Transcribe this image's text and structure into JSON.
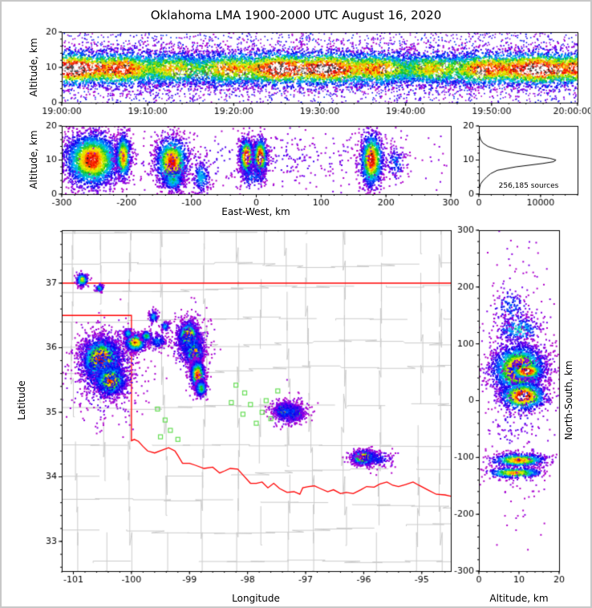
{
  "title": "Oklahoma LMA 1900-2000 UTC August 16, 2020",
  "colors": {
    "background": "#ffffff",
    "frame": "#c8c8c8",
    "axis": "#000000",
    "state_border": "#ff0000",
    "county_lines": "#cbcbcb",
    "station_marker": "#66dd55",
    "histogram_line": "#000000",
    "colormap_stops": [
      {
        "t": 0.0,
        "c": "#c000c0"
      },
      {
        "t": 0.1,
        "c": "#7700ee"
      },
      {
        "t": 0.22,
        "c": "#0000ee"
      },
      {
        "t": 0.34,
        "c": "#0077ff"
      },
      {
        "t": 0.45,
        "c": "#00ccee"
      },
      {
        "t": 0.56,
        "c": "#00bb22"
      },
      {
        "t": 0.68,
        "c": "#bbee00"
      },
      {
        "t": 0.76,
        "c": "#ffee00"
      },
      {
        "t": 0.84,
        "c": "#ff8800"
      },
      {
        "t": 0.92,
        "c": "#ff1100"
      },
      {
        "t": 1.0,
        "c": "#cc0000"
      }
    ]
  },
  "chart_data": {
    "time_height": {
      "type": "scatter",
      "ylabel": "Altitude, km",
      "ylim": [
        0,
        20
      ],
      "yticks": [
        0,
        10,
        20
      ],
      "xlim_seconds": [
        0,
        3600
      ],
      "x_ticks_seconds": [
        0,
        600,
        1200,
        1800,
        2400,
        3000,
        3600
      ],
      "x_tick_labels": [
        "19:00:00",
        "19:10:00",
        "19:20:00",
        "19:30:00",
        "19:40:00",
        "19:50:00",
        "20:00:00"
      ],
      "band_center_km": 9.8,
      "band_sigma_km": 2.7,
      "band_points": 13000,
      "sparse_points": 2600,
      "white_blobs": 45
    },
    "east_west": {
      "type": "scatter",
      "xlabel": "East-West, km",
      "ylabel": "Altitude, km",
      "xlim": [
        -300,
        300
      ],
      "xticks": [
        -300,
        -200,
        -100,
        0,
        100,
        200,
        300
      ],
      "ylim": [
        0,
        20
      ],
      "yticks": [
        0,
        10,
        20
      ],
      "cluster_fields": [
        "x_center_km",
        "alt_center_km",
        "x_sigma",
        "alt_sigma",
        "points",
        "peak"
      ],
      "clusters": [
        [
          -253,
          10,
          22,
          4.2,
          2800,
          0.97
        ],
        [
          -205,
          11,
          6,
          3.5,
          650,
          0.9
        ],
        [
          -130,
          9.5,
          13,
          3.8,
          1400,
          0.95
        ],
        [
          -128,
          4,
          10,
          1.8,
          260,
          0.5
        ],
        [
          -85,
          5,
          7,
          2.5,
          220,
          0.45
        ],
        [
          -15,
          11,
          5.5,
          2.8,
          780,
          1.06
        ],
        [
          6,
          11,
          5.5,
          2.8,
          750,
          1.06
        ],
        [
          -5,
          5.5,
          12,
          2,
          180,
          0.35
        ],
        [
          178,
          10,
          9,
          4.2,
          1250,
          1.0
        ],
        [
          215,
          9,
          8,
          3,
          130,
          0.3
        ],
        [
          0,
          10,
          150,
          4.5,
          500,
          0.12
        ]
      ]
    },
    "histogram": {
      "type": "line",
      "annotation": "256,185 sources",
      "xlim": [
        0,
        16000
      ],
      "xticks": [
        0,
        10000
      ],
      "ylim": [
        0,
        20
      ],
      "yticks": [
        0,
        10,
        20
      ],
      "profile_alt_km_count": [
        [
          0,
          30
        ],
        [
          1,
          60
        ],
        [
          2,
          130
        ],
        [
          3,
          280
        ],
        [
          4,
          700
        ],
        [
          5,
          1250
        ],
        [
          6,
          1900
        ],
        [
          7,
          3000
        ],
        [
          8,
          6000
        ],
        [
          9,
          10400
        ],
        [
          9.5,
          12100
        ],
        [
          10,
          12500
        ],
        [
          10.5,
          11500
        ],
        [
          11,
          9600
        ],
        [
          12,
          6000
        ],
        [
          13,
          3100
        ],
        [
          14,
          1450
        ],
        [
          15,
          640
        ],
        [
          16,
          280
        ],
        [
          17,
          115
        ],
        [
          18,
          50
        ],
        [
          19,
          18
        ],
        [
          20,
          6
        ]
      ]
    },
    "plan_view": {
      "type": "scatter",
      "xlabel": "Longitude",
      "ylabel": "Latitude",
      "xlim": [
        -101.2,
        -94.5
      ],
      "ylim": [
        32.54,
        37.82
      ],
      "xticks": [
        -101,
        -100,
        -99,
        -98,
        -97,
        -96,
        -95
      ],
      "yticks": [
        33,
        34,
        35,
        36,
        37
      ],
      "cluster_fields": [
        "lon",
        "lat",
        "lon_sigma",
        "lat_sigma",
        "points",
        "peak"
      ],
      "clusters": [
        [
          -100.52,
          35.82,
          0.17,
          0.17,
          2600,
          0.96
        ],
        [
          -100.36,
          35.5,
          0.13,
          0.12,
          1500,
          0.92
        ],
        [
          -100.45,
          35.65,
          0.3,
          0.34,
          800,
          0.3
        ],
        [
          -99.93,
          36.08,
          0.09,
          0.07,
          750,
          0.9
        ],
        [
          -99.74,
          36.18,
          0.05,
          0.04,
          180,
          0.6
        ],
        [
          -100.06,
          36.22,
          0.04,
          0.04,
          140,
          0.5
        ],
        [
          -99.55,
          36.1,
          0.08,
          0.06,
          150,
          0.35
        ],
        [
          -99.02,
          36.18,
          0.09,
          0.11,
          1200,
          0.95
        ],
        [
          -98.92,
          35.93,
          0.08,
          0.09,
          950,
          0.9
        ],
        [
          -98.98,
          36.05,
          0.18,
          0.22,
          450,
          0.28
        ],
        [
          -98.86,
          35.58,
          0.06,
          0.11,
          1000,
          0.95
        ],
        [
          -98.8,
          35.37,
          0.05,
          0.07,
          350,
          0.6
        ],
        [
          -97.38,
          35.03,
          0.06,
          0.05,
          850,
          1.07
        ],
        [
          -97.17,
          34.99,
          0.055,
          0.05,
          800,
          1.07
        ],
        [
          -97.3,
          35.0,
          0.17,
          0.1,
          450,
          0.28
        ],
        [
          -96.0,
          34.3,
          0.1,
          0.055,
          850,
          1.0
        ],
        [
          -95.82,
          34.28,
          0.2,
          0.07,
          220,
          0.26
        ],
        [
          -100.85,
          37.05,
          0.05,
          0.05,
          200,
          0.75
        ],
        [
          -100.55,
          36.92,
          0.035,
          0.03,
          90,
          0.5
        ],
        [
          -99.62,
          36.48,
          0.04,
          0.05,
          110,
          0.45
        ],
        [
          -99.42,
          36.33,
          0.04,
          0.04,
          70,
          0.4
        ]
      ],
      "stations": [
        [
          -99.55,
          35.05
        ],
        [
          -99.42,
          34.88
        ],
        [
          -99.33,
          34.72
        ],
        [
          -99.2,
          34.58
        ],
        [
          -99.5,
          34.62
        ],
        [
          -98.2,
          35.42
        ],
        [
          -98.05,
          35.3
        ],
        [
          -97.95,
          35.12
        ],
        [
          -98.08,
          34.97
        ],
        [
          -97.75,
          35.0
        ],
        [
          -97.6,
          34.9
        ],
        [
          -97.85,
          34.83
        ],
        [
          -98.28,
          35.15
        ],
        [
          -97.68,
          35.18
        ],
        [
          -97.48,
          35.33
        ]
      ],
      "state_border": {
        "kansas_line_lat": 37,
        "west_and_south": [
          [
            -101.2,
            36.5
          ],
          [
            -100.0,
            36.5
          ],
          [
            -100.0,
            34.56
          ],
          [
            -99.95,
            34.58
          ],
          [
            -99.88,
            34.55
          ],
          [
            -99.8,
            34.47
          ],
          [
            -99.72,
            34.4
          ],
          [
            -99.6,
            34.37
          ],
          [
            -99.48,
            34.41
          ],
          [
            -99.36,
            34.45
          ],
          [
            -99.25,
            34.4
          ],
          [
            -99.2,
            34.33
          ],
          [
            -99.12,
            34.21
          ],
          [
            -99.0,
            34.21
          ],
          [
            -98.9,
            34.18
          ],
          [
            -98.75,
            34.13
          ],
          [
            -98.6,
            34.15
          ],
          [
            -98.48,
            34.06
          ],
          [
            -98.4,
            34.09
          ],
          [
            -98.3,
            34.13
          ],
          [
            -98.17,
            34.12
          ],
          [
            -98.08,
            34.03
          ],
          [
            -97.95,
            33.9
          ],
          [
            -97.85,
            33.9
          ],
          [
            -97.75,
            33.92
          ],
          [
            -97.65,
            33.83
          ],
          [
            -97.55,
            33.9
          ],
          [
            -97.45,
            33.82
          ],
          [
            -97.32,
            33.76
          ],
          [
            -97.2,
            33.77
          ],
          [
            -97.1,
            33.73
          ],
          [
            -97.05,
            33.83
          ],
          [
            -96.95,
            33.85
          ],
          [
            -96.85,
            33.86
          ],
          [
            -96.75,
            33.82
          ],
          [
            -96.62,
            33.77
          ],
          [
            -96.52,
            33.8
          ],
          [
            -96.4,
            33.74
          ],
          [
            -96.3,
            33.76
          ],
          [
            -96.18,
            33.74
          ],
          [
            -96.05,
            33.8
          ],
          [
            -95.95,
            33.85
          ],
          [
            -95.82,
            33.84
          ],
          [
            -95.72,
            33.89
          ],
          [
            -95.6,
            33.92
          ],
          [
            -95.5,
            33.87
          ],
          [
            -95.4,
            33.85
          ],
          [
            -95.28,
            33.88
          ],
          [
            -95.15,
            33.92
          ],
          [
            -95.05,
            33.87
          ],
          [
            -94.9,
            33.8
          ],
          [
            -94.75,
            33.73
          ],
          [
            -94.6,
            33.72
          ],
          [
            -94.5,
            33.7
          ]
        ]
      }
    },
    "north_south": {
      "type": "scatter",
      "xlabel": "Altitude, km",
      "ylabel": "North-South, km",
      "xlim": [
        0,
        20
      ],
      "xticks": [
        0,
        10,
        20
      ],
      "ylim": [
        -300,
        300
      ],
      "yticks": [
        300,
        200,
        100,
        0,
        -100,
        -200,
        -300
      ],
      "cluster_fields": [
        "alt_center_km",
        "y_center_km",
        "alt_sigma",
        "y_sigma",
        "points",
        "peak"
      ],
      "clusters": [
        [
          10,
          55,
          3.5,
          23,
          2500,
          0.97
        ],
        [
          12,
          52,
          2.2,
          8,
          500,
          1.06
        ],
        [
          11,
          8,
          3,
          13,
          900,
          1.06
        ],
        [
          10,
          -105,
          3.5,
          6,
          650,
          0.9
        ],
        [
          9,
          -127,
          3.5,
          5,
          450,
          0.85
        ],
        [
          10,
          125,
          3,
          12,
          260,
          0.5
        ],
        [
          8,
          165,
          2.5,
          18,
          140,
          0.32
        ],
        [
          10,
          30,
          4.5,
          110,
          420,
          0.15
        ]
      ]
    }
  }
}
